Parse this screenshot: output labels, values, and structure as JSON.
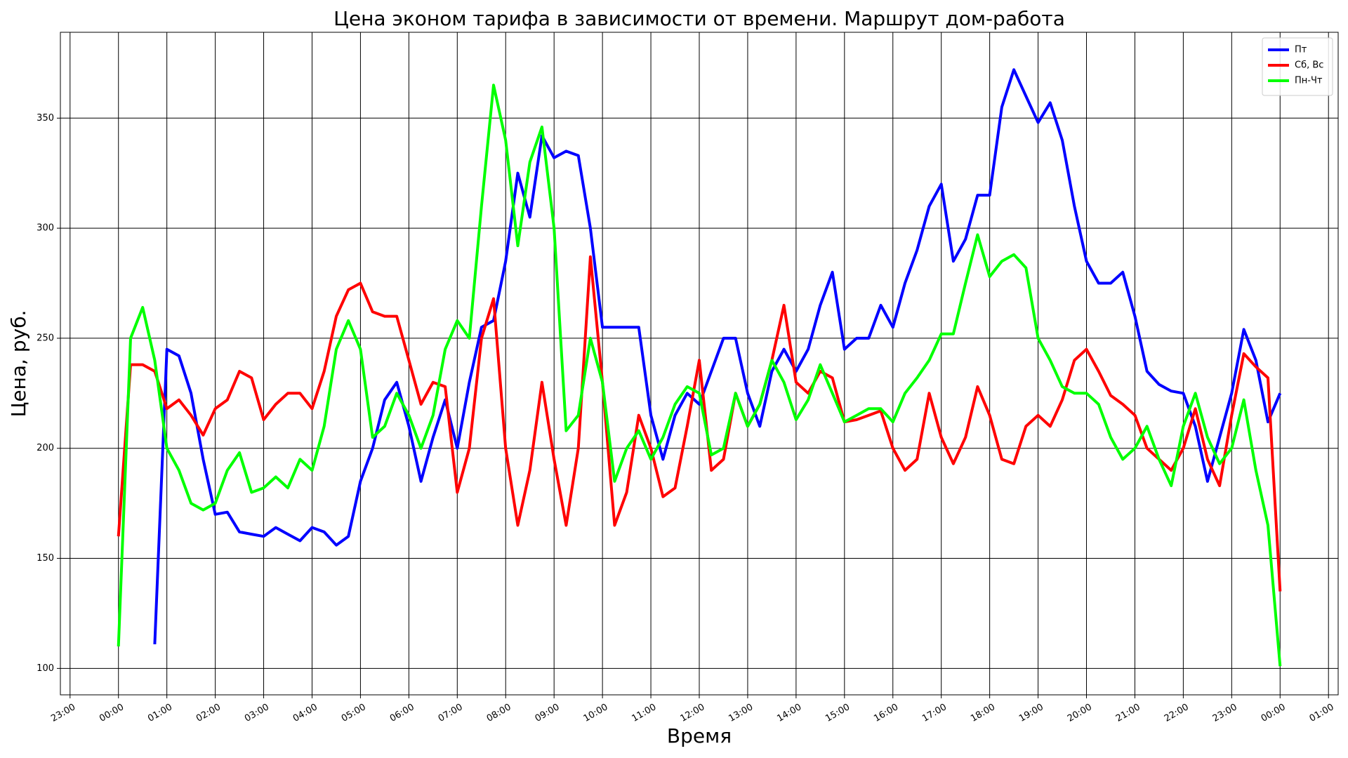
{
  "chart_data": {
    "type": "line",
    "title": "Цена эконом тарифа в зависимости от времени. Маршрут дом-работа",
    "x_label": "Время",
    "y_label": "Цена, руб.",
    "x": [
      0,
      0.25,
      0.5,
      0.75,
      1,
      1.25,
      1.5,
      1.75,
      2,
      2.25,
      2.5,
      2.75,
      3,
      3.25,
      3.5,
      3.75,
      4,
      4.25,
      4.5,
      4.75,
      5,
      5.25,
      5.5,
      5.75,
      6,
      6.25,
      6.5,
      6.75,
      7,
      7.25,
      7.5,
      7.75,
      8,
      8.25,
      8.5,
      8.75,
      9,
      9.25,
      9.5,
      9.75,
      10,
      10.25,
      10.5,
      10.75,
      11,
      11.25,
      11.5,
      11.75,
      12,
      12.25,
      12.5,
      12.75,
      13,
      13.25,
      13.5,
      13.75,
      14,
      14.25,
      14.5,
      14.75,
      15,
      15.25,
      15.5,
      15.75,
      16,
      16.25,
      16.5,
      16.75,
      17,
      17.25,
      17.5,
      17.75,
      18,
      18.25,
      18.5,
      18.75,
      19,
      19.25,
      19.5,
      19.75,
      20,
      20.25,
      20.5,
      20.75,
      21,
      21.25,
      21.5,
      21.75,
      22,
      22.25,
      22.5,
      22.75,
      23,
      23.25,
      23.5,
      23.75,
      24
    ],
    "series": [
      {
        "name": "Пт",
        "color": "#0000ff",
        "values": [
          null,
          null,
          null,
          111,
          245,
          242,
          225,
          195,
          170,
          171,
          162,
          161,
          160,
          164,
          161,
          158,
          164,
          162,
          156,
          160,
          185,
          200,
          222,
          230,
          210,
          185,
          205,
          222,
          200,
          230,
          255,
          258,
          285,
          325,
          305,
          342,
          332,
          335,
          333,
          300,
          255,
          255,
          255,
          255,
          215,
          195,
          215,
          225,
          220,
          235,
          250,
          250,
          225,
          210,
          235,
          245,
          235,
          245,
          265,
          280,
          245,
          250,
          250,
          265,
          255,
          275,
          290,
          310,
          320,
          285,
          295,
          315,
          315,
          355,
          372,
          360,
          348,
          357,
          340,
          310,
          285,
          275,
          275,
          280,
          260,
          235,
          229,
          226,
          225,
          210,
          185,
          205,
          225,
          254,
          240,
          212,
          225
        ]
      },
      {
        "name": "Сб, Вс",
        "color": "#ff0000",
        "values": [
          160,
          238,
          238,
          235,
          218,
          222,
          215,
          206,
          218,
          222,
          235,
          232,
          213,
          220,
          225,
          225,
          218,
          235,
          260,
          272,
          275,
          262,
          260,
          260,
          240,
          220,
          230,
          228,
          180,
          200,
          250,
          268,
          200,
          165,
          190,
          230,
          195,
          165,
          200,
          287,
          230,
          165,
          180,
          215,
          200,
          178,
          182,
          210,
          240,
          190,
          195,
          225,
          210,
          220,
          240,
          265,
          230,
          225,
          235,
          232,
          212,
          213,
          215,
          217,
          200,
          190,
          195,
          225,
          205,
          193,
          205,
          228,
          215,
          195,
          193,
          210,
          215,
          210,
          222,
          240,
          245,
          235,
          224,
          220,
          215,
          200,
          195,
          190,
          200,
          218,
          195,
          183,
          215,
          243,
          237,
          232,
          135
        ]
      },
      {
        "name": "Пн-Чт",
        "color": "#00ff00",
        "values": [
          110,
          250,
          264,
          240,
          200,
          190,
          175,
          172,
          175,
          190,
          198,
          180,
          182,
          187,
          182,
          195,
          190,
          210,
          245,
          258,
          245,
          205,
          210,
          225,
          215,
          200,
          215,
          245,
          258,
          250,
          310,
          365,
          340,
          292,
          330,
          346,
          300,
          208,
          215,
          250,
          230,
          185,
          200,
          208,
          195,
          205,
          220,
          228,
          225,
          197,
          200,
          225,
          210,
          220,
          240,
          230,
          213,
          222,
          238,
          225,
          212,
          215,
          218,
          218,
          212,
          225,
          232,
          240,
          252,
          252,
          275,
          297,
          278,
          285,
          288,
          282,
          250,
          240,
          228,
          225,
          225,
          220,
          205,
          195,
          200,
          210,
          195,
          183,
          210,
          225,
          205,
          193,
          200,
          222,
          190,
          165,
          101
        ]
      }
    ],
    "xlim": [
      -1.2,
      25.2
    ],
    "xticks": [
      {
        "value": -1,
        "label": "23:00"
      },
      {
        "value": 0,
        "label": "00:00"
      },
      {
        "value": 1,
        "label": "01:00"
      },
      {
        "value": 2,
        "label": "02:00"
      },
      {
        "value": 3,
        "label": "03:00"
      },
      {
        "value": 4,
        "label": "04:00"
      },
      {
        "value": 5,
        "label": "05:00"
      },
      {
        "value": 6,
        "label": "06:00"
      },
      {
        "value": 7,
        "label": "07:00"
      },
      {
        "value": 8,
        "label": "08:00"
      },
      {
        "value": 9,
        "label": "09:00"
      },
      {
        "value": 10,
        "label": "10:00"
      },
      {
        "value": 11,
        "label": "11:00"
      },
      {
        "value": 12,
        "label": "12:00"
      },
      {
        "value": 13,
        "label": "13:00"
      },
      {
        "value": 14,
        "label": "14:00"
      },
      {
        "value": 15,
        "label": "15:00"
      },
      {
        "value": 16,
        "label": "16:00"
      },
      {
        "value": 17,
        "label": "17:00"
      },
      {
        "value": 18,
        "label": "18:00"
      },
      {
        "value": 19,
        "label": "19:00"
      },
      {
        "value": 20,
        "label": "20:00"
      },
      {
        "value": 21,
        "label": "21:00"
      },
      {
        "value": 22,
        "label": "22:00"
      },
      {
        "value": 23,
        "label": "23:00"
      },
      {
        "value": 24,
        "label": "00:00"
      },
      {
        "value": 25,
        "label": "01:00"
      }
    ],
    "ylim": [
      88,
      389
    ],
    "yticks": [
      100,
      150,
      200,
      250,
      300,
      350
    ],
    "grid": true,
    "legend": "upper right"
  }
}
